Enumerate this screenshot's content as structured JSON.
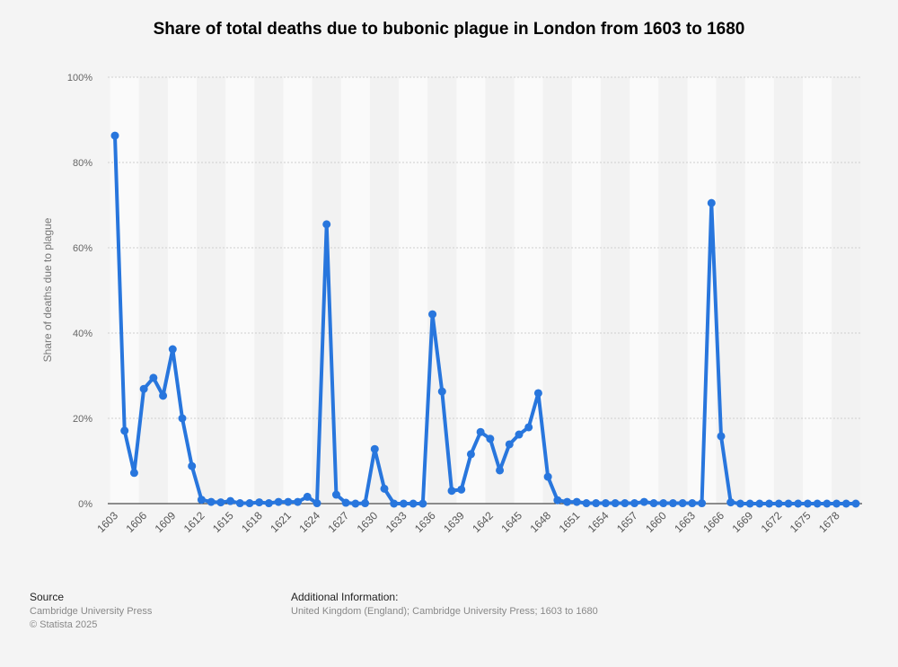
{
  "chart_data": {
    "type": "line",
    "title": "Share of total deaths due to bubonic plague in London from 1603 to 1680",
    "xlabel": "",
    "ylabel": "Share of deaths due to plague",
    "ylim": [
      0,
      100
    ],
    "yticks": [
      "0%",
      "20%",
      "40%",
      "60%",
      "80%",
      "100%"
    ],
    "x_start": 1603,
    "x_end": 1680,
    "xtick_step": 3,
    "grid": true,
    "color": "#2876dd",
    "values": [
      86.3,
      17.1,
      7.2,
      26.9,
      29.5,
      25.3,
      36.2,
      20.0,
      8.8,
      0.9,
      0.4,
      0.3,
      0.6,
      0.1,
      0.1,
      0.3,
      0.1,
      0.4,
      0.4,
      0.4,
      1.6,
      0.1,
      65.5,
      2.1,
      0.2,
      0.0,
      0.1,
      12.8,
      3.5,
      0.0,
      0.0,
      0.0,
      0.0,
      44.4,
      26.3,
      3.0,
      3.3,
      11.6,
      16.8,
      15.2,
      7.8,
      13.9,
      16.2,
      17.9,
      25.9,
      6.3,
      0.8,
      0.4,
      0.4,
      0.1,
      0.1,
      0.1,
      0.1,
      0.1,
      0.1,
      0.4,
      0.1,
      0.1,
      0.1,
      0.1,
      0.1,
      0.1,
      70.5,
      15.8,
      0.3,
      0.0,
      0.0,
      0.0,
      0.0,
      0.0,
      0.0,
      0.0,
      0.0,
      0.0,
      0.0,
      0.0,
      0.0,
      0.0
    ]
  },
  "footer": {
    "source_heading": "Source",
    "source_lines": [
      "Cambridge University Press",
      "© Statista 2025"
    ],
    "info_heading": "Additional Information:",
    "info_text": "United Kingdom (England); Cambridge University Press; 1603 to 1680"
  }
}
